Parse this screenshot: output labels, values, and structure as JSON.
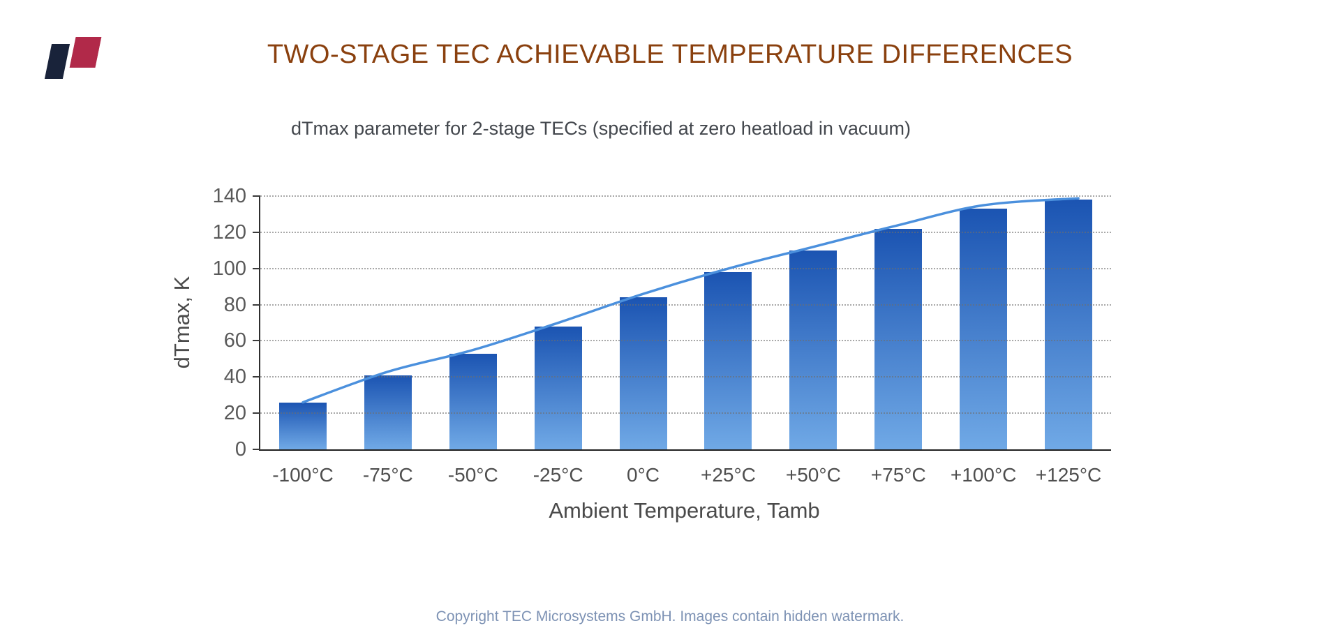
{
  "header": {
    "title": "TWO-STAGE TEC ACHIEVABLE TEMPERATURE DIFFERENCES",
    "title_color": "#8a400e"
  },
  "logo": {
    "label": "TEC Microsystems logo",
    "navy_color": "#19233a",
    "crimson_color": "#b12949"
  },
  "chart_data": {
    "type": "bar",
    "title": "dTmax parameter for 2-stage TECs (specified at zero heatload in vacuum)",
    "categories": [
      "-100°C",
      "-75°C",
      "-50°C",
      "-25°C",
      "0°C",
      "+25°C",
      "+50°C",
      "+75°C",
      "+100°C",
      "+125°C"
    ],
    "values": [
      26,
      41,
      53,
      68,
      84,
      98,
      110,
      122,
      133,
      138
    ],
    "trendline": {
      "type": "smooth-through-bar-tops",
      "color": "#4b90dd"
    },
    "xlabel": "Ambient Temperature, Tamb",
    "ylabel": "dTmax, K",
    "ylim": [
      0,
      140
    ],
    "ytick_step": 20,
    "grid": "horizontal-dotted",
    "legend": "none",
    "bar_color_top": "#1b54b2",
    "bar_color_bottom": "#70a9e6",
    "tick_label_color": "#595959",
    "axis_color": "#2e2e2e"
  },
  "footer": {
    "text": "Copyright TEC Microsystems GmbH. Images contain hidden watermark.",
    "color": "#7d92b4"
  }
}
